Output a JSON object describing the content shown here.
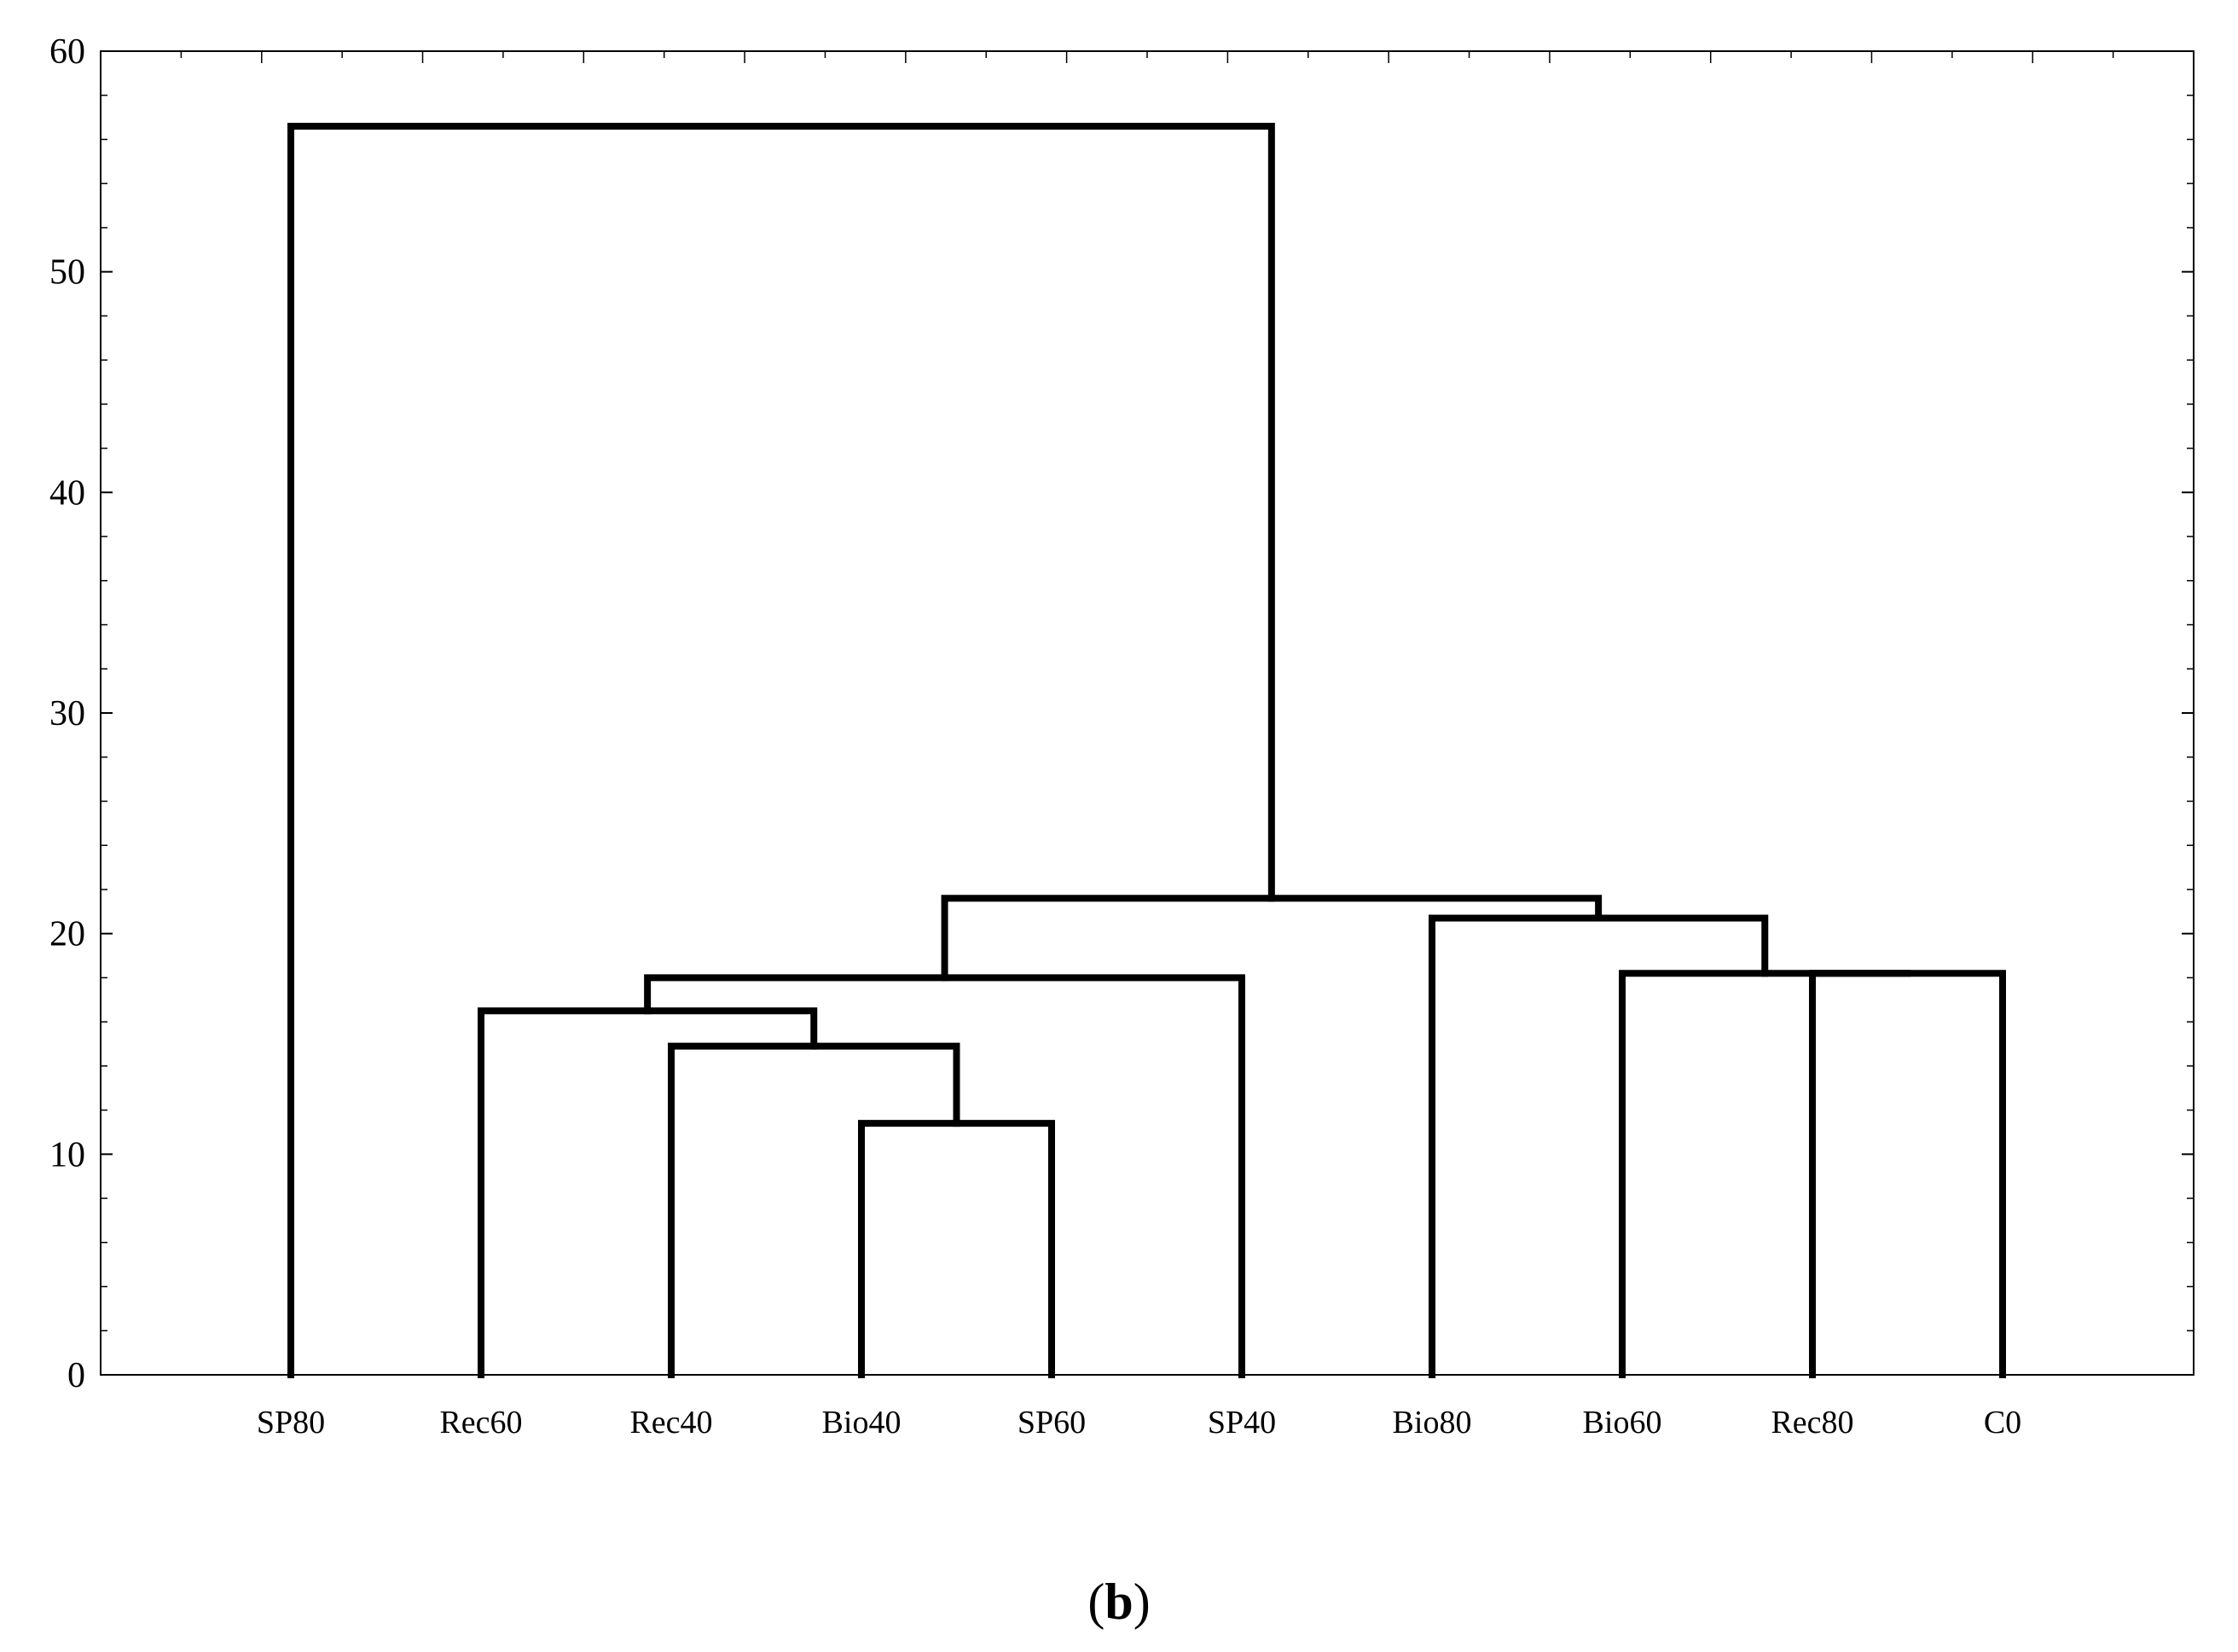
{
  "chart_data": {
    "type": "dendrogram",
    "leaves": [
      "SP80",
      "Rec60",
      "Rec40",
      "Bio40",
      "SP60",
      "SP40",
      "Bio80",
      "Bio60",
      "Rec80",
      "C0"
    ],
    "merges": [
      {
        "left": "Bio40",
        "right": "SP60",
        "height": 11.4
      },
      {
        "left": "Rec40",
        "right": "Bio40+SP60",
        "height": 14.9
      },
      {
        "left": "Rec60",
        "right": "Rec40+Bio40+SP60",
        "height": 16.5
      },
      {
        "left": "Rec60+Rec40+Bio40+SP60",
        "right": "SP40",
        "height": 18.0
      },
      {
        "left": "Rec80",
        "right": "C0",
        "height": 18.2
      },
      {
        "left": "Bio60",
        "right": "Rec80+C0",
        "height": 18.2
      },
      {
        "left": "Bio80",
        "right": "Bio60+Rec80+C0",
        "height": 20.7
      },
      {
        "left": "Rec60+Rec40+Bio40+SP60+SP40",
        "right": "Bio80+Bio60+Rec80+C0",
        "height": 21.6
      },
      {
        "left": "SP80",
        "right": "all others",
        "height": 56.6
      }
    ],
    "y_ticks": [
      0,
      10,
      20,
      30,
      40,
      50,
      60
    ],
    "ylim": [
      0,
      60
    ],
    "grid": false,
    "line_color": "#000000",
    "caption_open": "(",
    "caption_bold": "b",
    "caption_close": ")"
  }
}
